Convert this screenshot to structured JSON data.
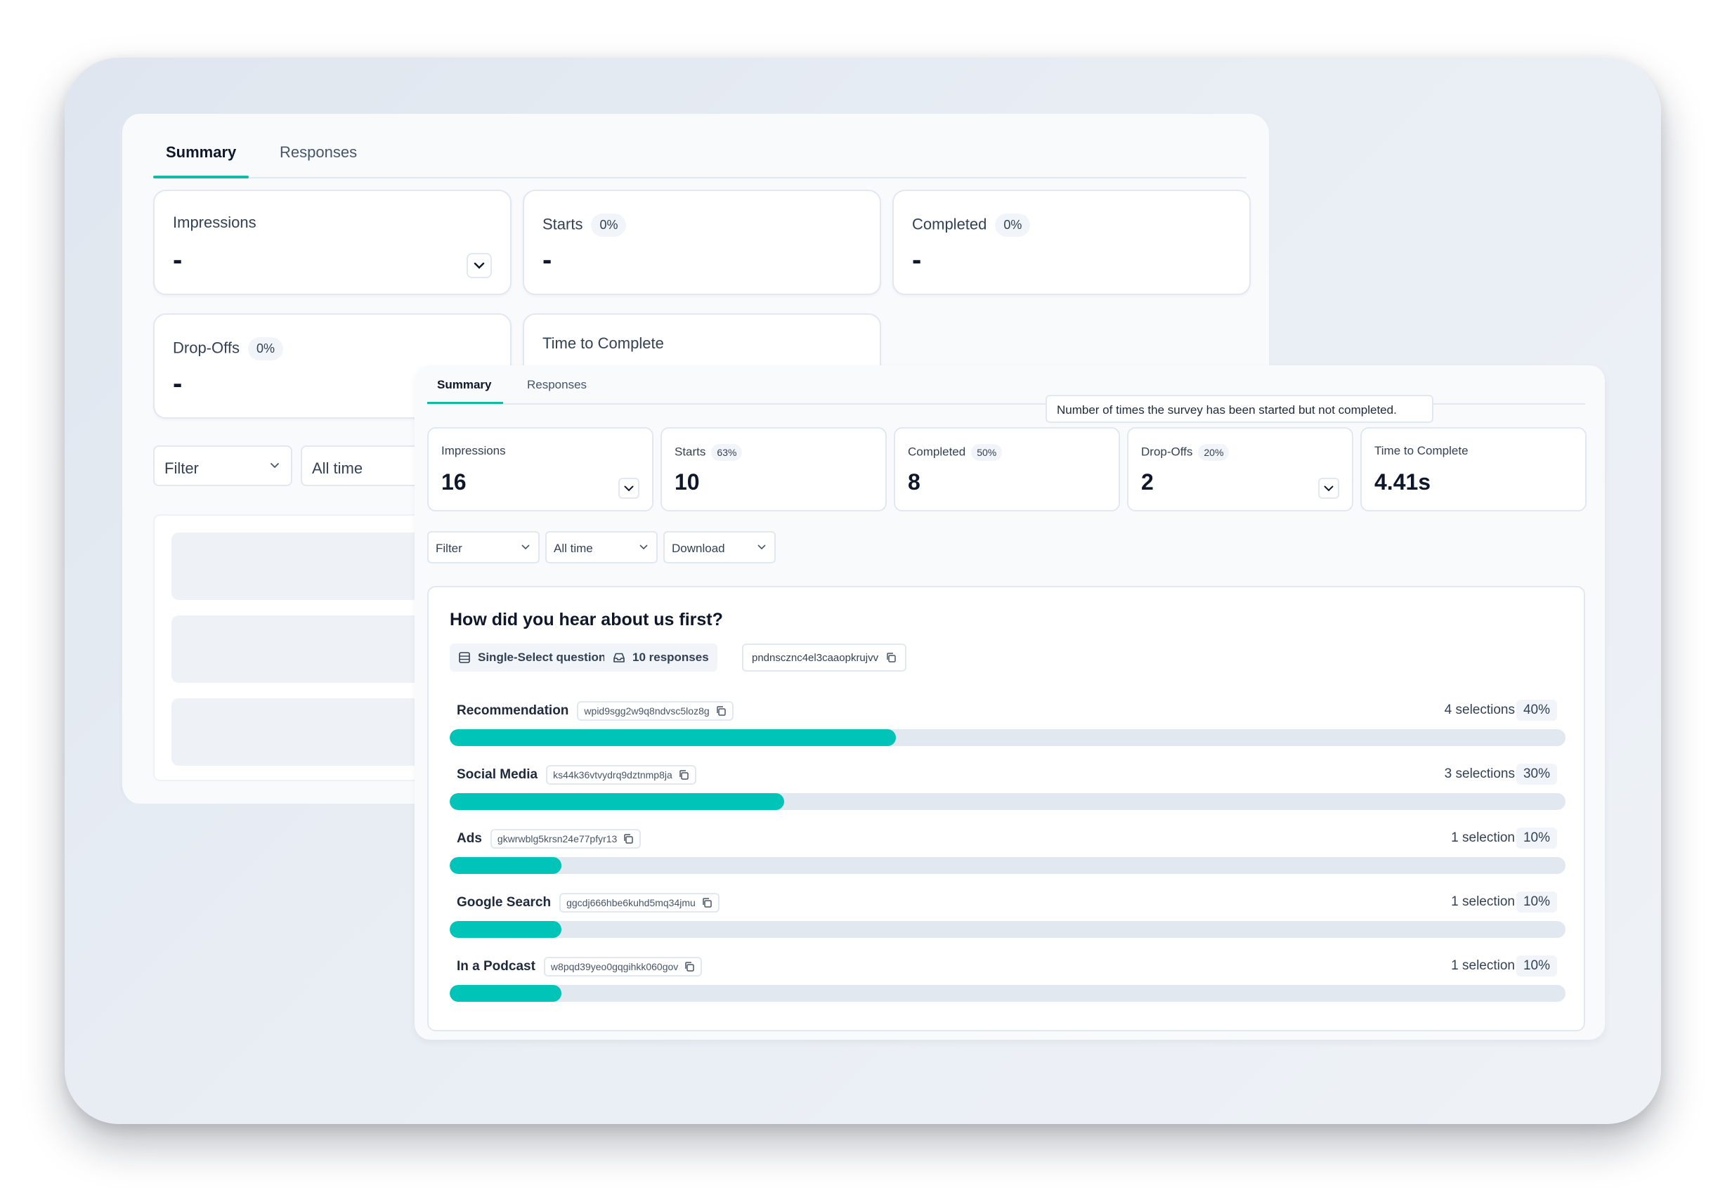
{
  "back": {
    "tabs": [
      "Summary",
      "Responses"
    ],
    "cards": {
      "impressions": {
        "label": "Impressions",
        "value": "-"
      },
      "starts": {
        "label": "Starts",
        "pill": "0%",
        "value": "-"
      },
      "completed": {
        "label": "Completed",
        "pill": "0%",
        "value": "-"
      },
      "dropoffs": {
        "label": "Drop-Offs",
        "pill": "0%",
        "value": "-"
      },
      "time": {
        "label": "Time to Complete"
      }
    },
    "filters": {
      "filter": "Filter",
      "time": "All time"
    }
  },
  "front": {
    "tabs": [
      "Summary",
      "Responses"
    ],
    "tooltip": "Number of times the survey has been started but not completed.",
    "cards": {
      "impressions": {
        "label": "Impressions",
        "value": "16"
      },
      "starts": {
        "label": "Starts",
        "pill": "63%",
        "value": "10"
      },
      "completed": {
        "label": "Completed",
        "pill": "50%",
        "value": "8"
      },
      "dropoffs": {
        "label": "Drop-Offs",
        "pill": "20%",
        "value": "2"
      },
      "time": {
        "label": "Time to Complete",
        "value": "4.41s"
      }
    },
    "filters": {
      "filter": "Filter",
      "time": "All time",
      "download": "Download"
    },
    "question": {
      "title": "How did you hear about us first?",
      "type": "Single-Select question",
      "responses": "10 responses",
      "id": "pndnscznc4el3caaopkrujvv",
      "options": [
        {
          "name": "Recommendation",
          "id": "wpid9sgg2w9q8ndvsc5loz8g",
          "count": "4 selections",
          "pct": "40%",
          "fraction": 0.4
        },
        {
          "name": "Social Media",
          "id": "ks44k36vtvydrq9dztnmp8ja",
          "count": "3 selections",
          "pct": "30%",
          "fraction": 0.3
        },
        {
          "name": "Ads",
          "id": "gkwrwblg5krsn24e77pfyr13",
          "count": "1 selection",
          "pct": "10%",
          "fraction": 0.1
        },
        {
          "name": "Google Search",
          "id": "ggcdj666hbe6kuhd5mq34jmu",
          "count": "1 selection",
          "pct": "10%",
          "fraction": 0.1
        },
        {
          "name": "In a Podcast",
          "id": "w8pqd39yeo0gqgihkk060gov",
          "count": "1 selection",
          "pct": "10%",
          "fraction": 0.1
        }
      ]
    }
  },
  "colors": {
    "accent": "#00c4b8",
    "tab_underline": "#14b8a6",
    "bar_track": "#e2e8f0"
  }
}
